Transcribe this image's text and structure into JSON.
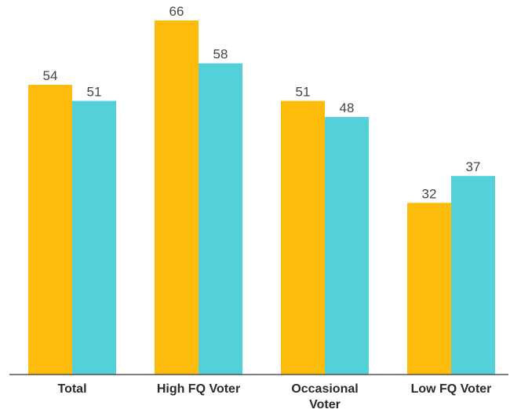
{
  "chart_data": {
    "type": "bar",
    "categories": [
      "Total",
      "High FQ Voter",
      "Occasional Voter",
      "Low FQ Voter"
    ],
    "category_lines": [
      [
        "Total"
      ],
      [
        "High FQ Voter"
      ],
      [
        "Occasional",
        "Voter"
      ],
      [
        "Low FQ Voter"
      ]
    ],
    "series": [
      {
        "values": [
          54,
          66,
          51,
          32
        ],
        "color": "#FDBC0C"
      },
      {
        "values": [
          51,
          58,
          48,
          37
        ],
        "color": "#54D0D8"
      }
    ],
    "title": "",
    "xlabel": "",
    "ylabel": "",
    "ylim": [
      0,
      66
    ],
    "grid": false,
    "data_labels": true
  }
}
